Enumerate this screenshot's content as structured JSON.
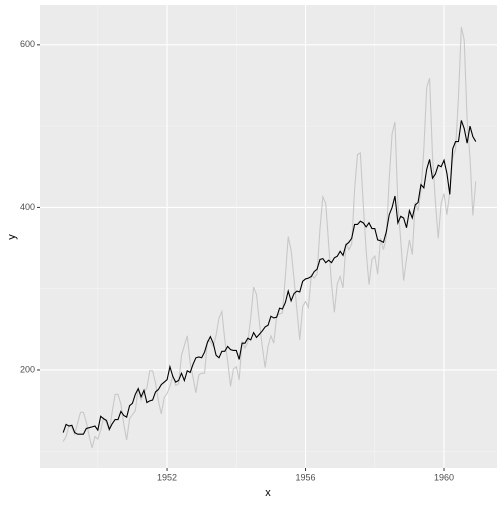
{
  "chart_data": {
    "type": "line",
    "x_label": "x",
    "y_label": "y",
    "x": [
      1949,
      1949.083,
      1949.167,
      1949.25,
      1949.333,
      1949.417,
      1949.5,
      1949.583,
      1949.667,
      1949.75,
      1949.833,
      1949.917,
      1950,
      1950.083,
      1950.167,
      1950.25,
      1950.333,
      1950.417,
      1950.5,
      1950.583,
      1950.667,
      1950.75,
      1950.833,
      1950.917,
      1951,
      1951.083,
      1951.167,
      1951.25,
      1951.333,
      1951.417,
      1951.5,
      1951.583,
      1951.667,
      1951.75,
      1951.833,
      1951.917,
      1952,
      1952.083,
      1952.167,
      1952.25,
      1952.333,
      1952.417,
      1952.5,
      1952.583,
      1952.667,
      1952.75,
      1952.833,
      1952.917,
      1953,
      1953.083,
      1953.167,
      1953.25,
      1953.333,
      1953.417,
      1953.5,
      1953.583,
      1953.667,
      1953.75,
      1953.833,
      1953.917,
      1954,
      1954.083,
      1954.167,
      1954.25,
      1954.333,
      1954.417,
      1954.5,
      1954.583,
      1954.667,
      1954.75,
      1954.833,
      1954.917,
      1955,
      1955.083,
      1955.167,
      1955.25,
      1955.333,
      1955.417,
      1955.5,
      1955.583,
      1955.667,
      1955.75,
      1955.833,
      1955.917,
      1956,
      1956.083,
      1956.167,
      1956.25,
      1956.333,
      1956.417,
      1956.5,
      1956.583,
      1956.667,
      1956.75,
      1956.833,
      1956.917,
      1957,
      1957.083,
      1957.167,
      1957.25,
      1957.333,
      1957.417,
      1957.5,
      1957.583,
      1957.667,
      1957.75,
      1957.833,
      1957.917,
      1958,
      1958.083,
      1958.167,
      1958.25,
      1958.333,
      1958.417,
      1958.5,
      1958.583,
      1958.667,
      1958.75,
      1958.833,
      1958.917,
      1959,
      1959.083,
      1959.167,
      1959.25,
      1959.333,
      1959.417,
      1959.5,
      1959.583,
      1959.667,
      1959.75,
      1959.833,
      1959.917,
      1960,
      1960.083,
      1960.167,
      1960.25,
      1960.333,
      1960.417,
      1960.5,
      1960.583,
      1960.667,
      1960.75,
      1960.833,
      1960.917
    ],
    "series": [
      {
        "color": "#c8c8c8",
        "values": [
          112,
          118,
          132,
          129,
          121,
          135,
          148,
          148,
          136,
          119,
          104,
          118,
          115,
          126,
          141,
          135,
          125,
          149,
          170,
          170,
          158,
          133,
          114,
          140,
          145,
          150,
          178,
          163,
          172,
          178,
          199,
          199,
          184,
          162,
          146,
          166,
          171,
          180,
          193,
          181,
          183,
          218,
          230,
          242,
          209,
          191,
          172,
          194,
          196,
          196,
          236,
          235,
          229,
          243,
          264,
          272,
          237,
          211,
          180,
          201,
          204,
          188,
          235,
          227,
          234,
          264,
          302,
          293,
          259,
          229,
          203,
          229,
          242,
          233,
          267,
          269,
          270,
          315,
          364,
          347,
          312,
          274,
          237,
          278,
          284,
          277,
          317,
          313,
          318,
          374,
          413,
          405,
          355,
          306,
          271,
          306,
          315,
          301,
          356,
          348,
          355,
          422,
          465,
          467,
          404,
          347,
          305,
          336,
          340,
          318,
          362,
          348,
          363,
          435,
          491,
          505,
          404,
          359,
          310,
          337,
          360,
          342,
          406,
          396,
          420,
          472,
          548,
          559,
          463,
          407,
          362,
          405,
          417,
          391,
          419,
          461,
          472,
          535,
          622,
          606,
          508,
          461,
          390,
          432
        ]
      },
      {
        "color": "#000000",
        "values": [
          123,
          133,
          131,
          132,
          123,
          121,
          121,
          121,
          128,
          129,
          130,
          131,
          126,
          143,
          140,
          138,
          127,
          134,
          139,
          139,
          149,
          144,
          142,
          156,
          159,
          170,
          177,
          167,
          175,
          160,
          162,
          163,
          173,
          176,
          182,
          185,
          188,
          204,
          192,
          185,
          187,
          196,
          187,
          199,
          197,
          207,
          215,
          216,
          215,
          222,
          234,
          241,
          233,
          218,
          215,
          223,
          223,
          229,
          225,
          224,
          224,
          213,
          233,
          233,
          239,
          237,
          246,
          240,
          244,
          248,
          253,
          255,
          266,
          264,
          265,
          276,
          275,
          283,
          297,
          285,
          294,
          297,
          296,
          309,
          312,
          313,
          315,
          321,
          324,
          336,
          337,
          332,
          335,
          332,
          338,
          340,
          346,
          341,
          354,
          357,
          362,
          379,
          379,
          383,
          381,
          376,
          381,
          374,
          374,
          360,
          359,
          357,
          370,
          391,
          400,
          414,
          381,
          389,
          387,
          375,
          396,
          387,
          403,
          406,
          428,
          424,
          447,
          459,
          436,
          441,
          452,
          450,
          458,
          442,
          416,
          472,
          481,
          481,
          507,
          497,
          479,
          500,
          487,
          481
        ]
      }
    ],
    "xlim": [
      1948.33,
      1961.53
    ],
    "ylim": [
      79.4,
      649
    ],
    "xticks": [
      1952,
      1956,
      1960
    ],
    "yticks": [
      200,
      400,
      600
    ],
    "x_minor_grid": [
      1950,
      1954,
      1958
    ],
    "y_minor_grid": [
      100,
      300,
      500
    ],
    "grid": true
  }
}
